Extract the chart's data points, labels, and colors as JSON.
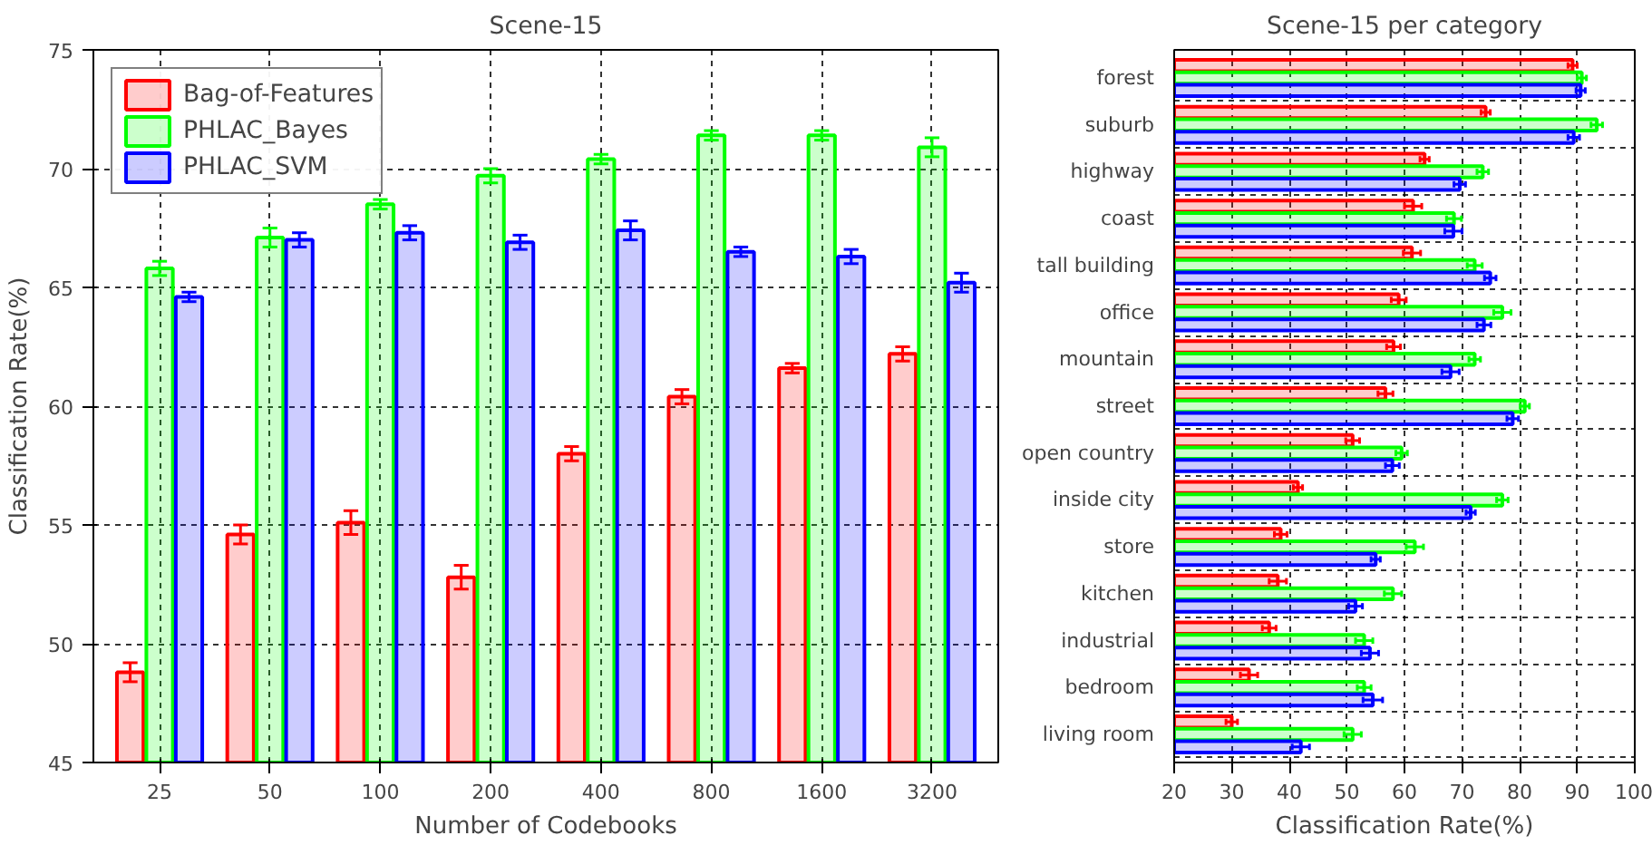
{
  "chart_data": [
    {
      "type": "bar",
      "title": "Scene-15",
      "xlabel": "Number of Codebooks",
      "ylabel": "Classification Rate(%)",
      "categories": [
        "25",
        "50",
        "100",
        "200",
        "400",
        "800",
        "1600",
        "3200"
      ],
      "series": [
        {
          "name": "Bag-of-Features",
          "color": "#ff0000",
          "values": [
            48.8,
            54.6,
            55.1,
            52.8,
            58.0,
            60.4,
            61.6,
            62.2
          ],
          "errors": [
            0.4,
            0.4,
            0.5,
            0.5,
            0.3,
            0.3,
            0.2,
            0.3
          ]
        },
        {
          "name": "PHLAC_Bayes",
          "color": "#00ff00",
          "values": [
            65.8,
            67.1,
            68.5,
            69.7,
            70.4,
            71.4,
            71.4,
            70.9
          ],
          "errors": [
            0.3,
            0.4,
            0.2,
            0.3,
            0.2,
            0.2,
            0.2,
            0.4
          ]
        },
        {
          "name": "PHLAC_SVM",
          "color": "#0000ff",
          "values": [
            64.6,
            67.0,
            67.3,
            66.9,
            67.4,
            66.5,
            66.3,
            65.2
          ],
          "errors": [
            0.2,
            0.3,
            0.3,
            0.3,
            0.4,
            0.2,
            0.3,
            0.4
          ]
        }
      ],
      "ylim": [
        45,
        75
      ],
      "yticks": [
        45,
        50,
        55,
        60,
        65,
        70,
        75
      ],
      "grid": true,
      "legend": "top left"
    },
    {
      "type": "bar",
      "orientation": "horizontal",
      "title": "Scene-15 per category",
      "xlabel": "Classification Rate(%)",
      "categories": [
        "forest",
        "suburb",
        "highway",
        "coast",
        "tall building",
        "office",
        "mountain",
        "street",
        "open country",
        "inside city",
        "store",
        "kitchen",
        "industrial",
        "bedroom",
        "living room"
      ],
      "series": [
        {
          "color": "#ff0000",
          "values": [
            89.2,
            74.1,
            63.5,
            61.5,
            61.3,
            59.0,
            58.1,
            56.7,
            51.0,
            41.5,
            38.5,
            38.0,
            36.5,
            33.0,
            30.0
          ],
          "errors": [
            0.8,
            0.8,
            0.8,
            1.5,
            1.5,
            1.3,
            1.2,
            1.3,
            1.2,
            0.8,
            1.1,
            1.5,
            1.2,
            1.5,
            1.0
          ]
        },
        {
          "color": "#00ff00",
          "values": [
            90.8,
            93.4,
            73.6,
            68.6,
            72.2,
            77.0,
            72.2,
            80.9,
            59.5,
            77.0,
            61.8,
            58.0,
            53.0,
            53.0,
            51.0
          ],
          "errors": [
            0.8,
            1.0,
            1.0,
            1.3,
            1.3,
            1.5,
            1.0,
            0.8,
            1.0,
            1.0,
            1.5,
            1.5,
            1.5,
            1.2,
            1.5
          ]
        },
        {
          "color": "#0000ff",
          "values": [
            90.6,
            89.4,
            69.6,
            68.5,
            74.9,
            73.8,
            68.0,
            78.8,
            57.9,
            71.5,
            55.0,
            51.5,
            54.0,
            54.5,
            42.0
          ],
          "errors": [
            0.8,
            1.0,
            1.0,
            1.5,
            1.0,
            1.2,
            1.5,
            1.0,
            1.2,
            0.8,
            0.8,
            1.2,
            1.5,
            1.7,
            1.5
          ]
        }
      ],
      "xlim": [
        20,
        100
      ],
      "xticks": [
        20,
        30,
        40,
        50,
        60,
        70,
        80,
        90,
        100
      ],
      "grid": true
    }
  ]
}
